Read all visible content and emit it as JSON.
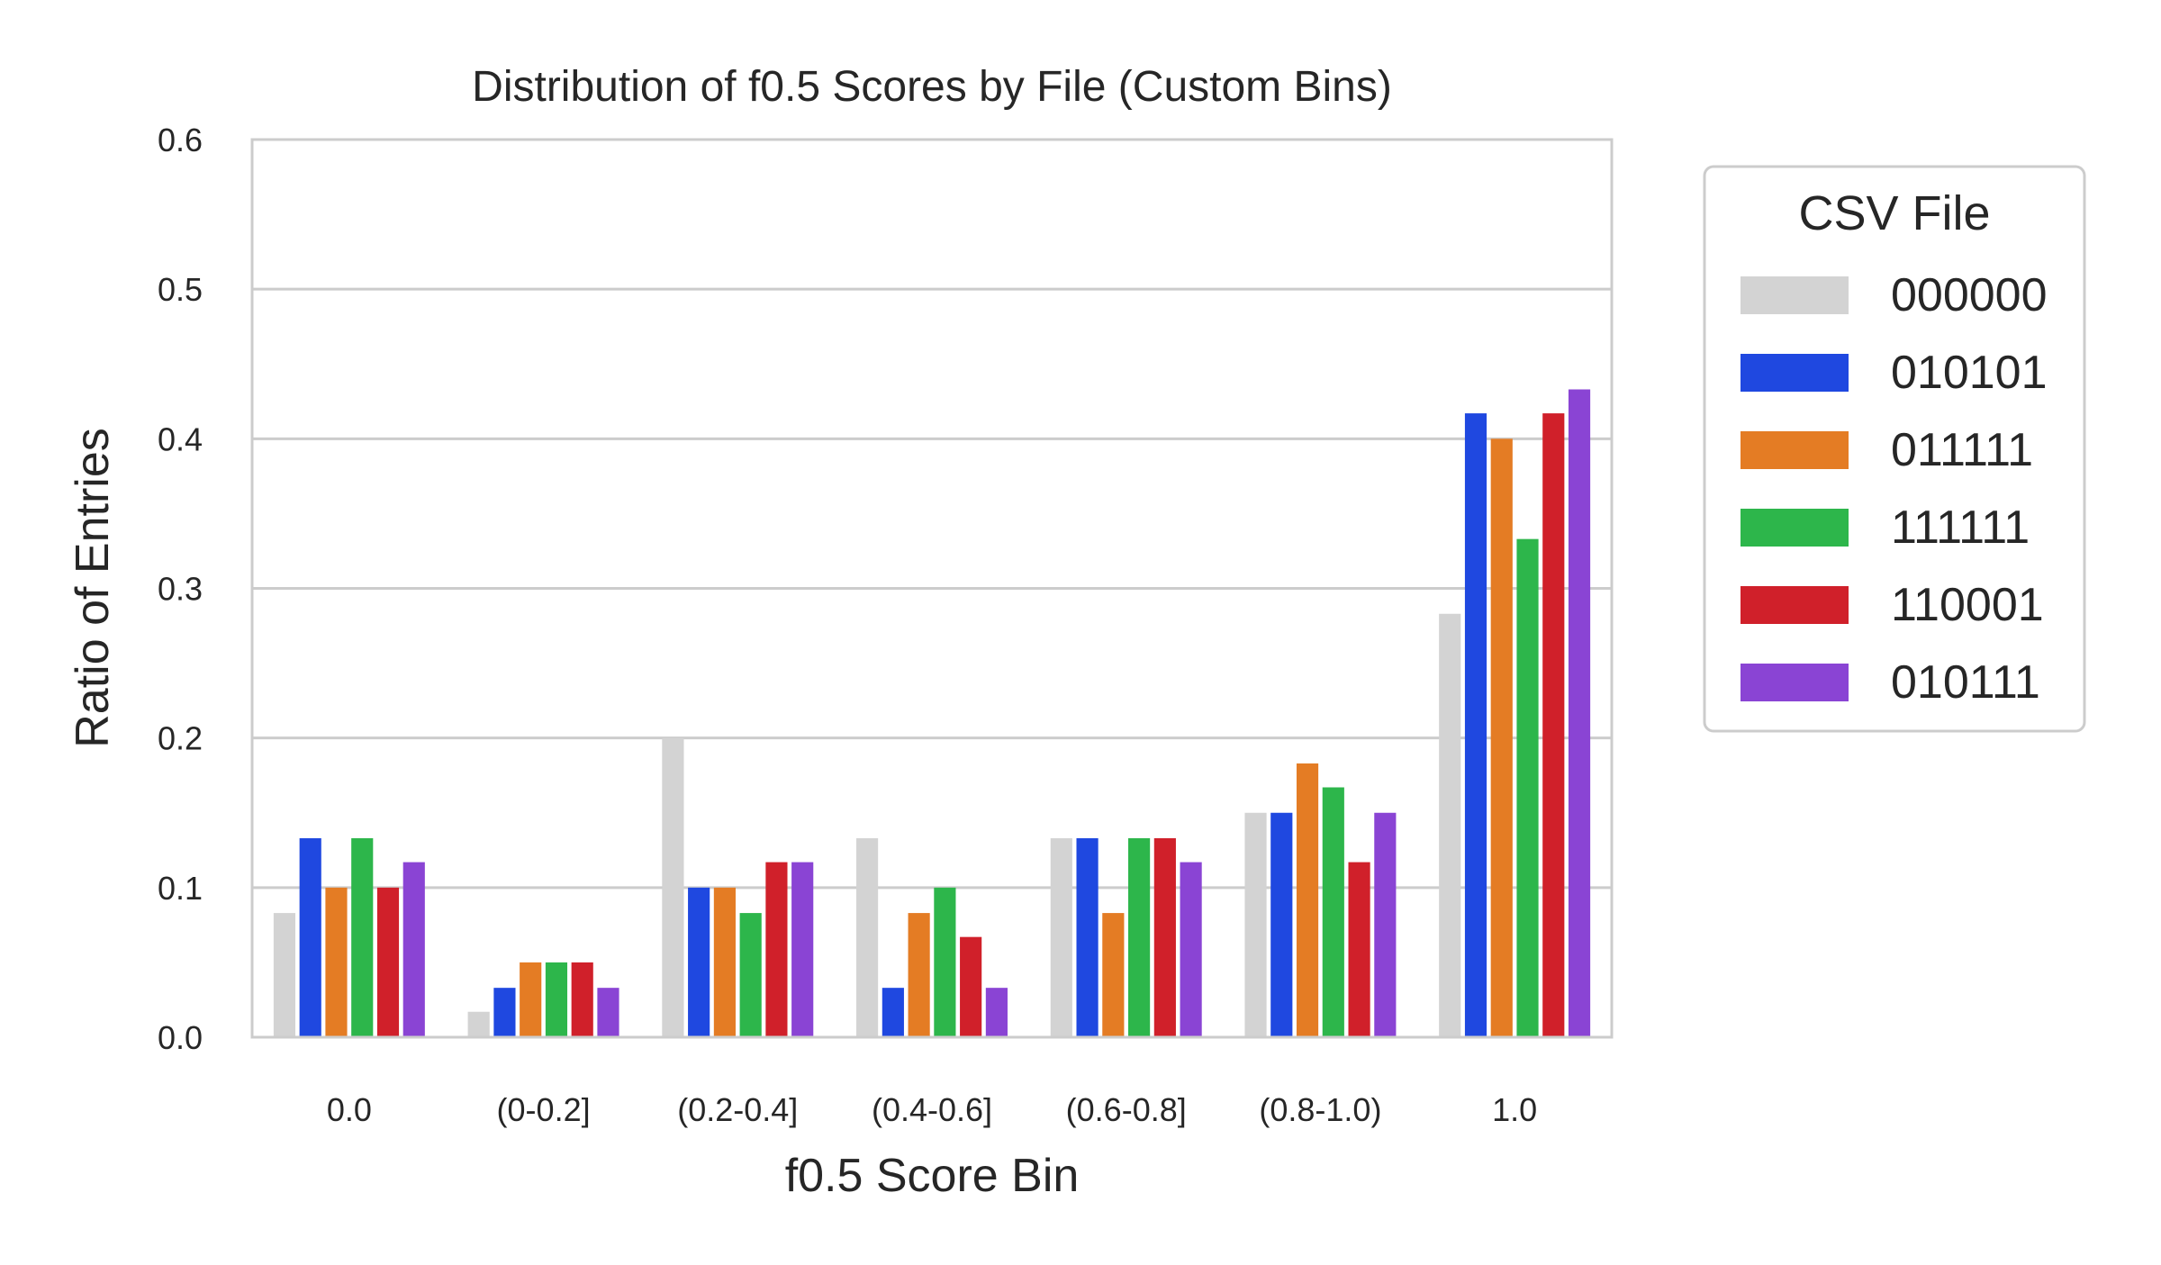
{
  "chart_data": {
    "type": "bar",
    "title": "Distribution of f0.5 Scores by File (Custom Bins)",
    "xlabel": "f0.5 Score Bin",
    "ylabel": "Ratio of Entries",
    "ylim": [
      0,
      0.6
    ],
    "yticks": [
      "0.0",
      "0.1",
      "0.2",
      "0.3",
      "0.4",
      "0.5",
      "0.6"
    ],
    "grid": true,
    "legend_title": "CSV File",
    "legend_position": "outside-right",
    "categories": [
      "0.0",
      "(0-0.2]",
      "(0.2-0.4]",
      "(0.4-0.6]",
      "(0.6-0.8]",
      "(0.8-1.0)",
      "1.0"
    ],
    "series": [
      {
        "name": "000000",
        "color": "#d3d3d3",
        "values": [
          0.083,
          0.017,
          0.2,
          0.133,
          0.133,
          0.15,
          0.283
        ]
      },
      {
        "name": "010101",
        "color": "#1f48e0",
        "values": [
          0.133,
          0.033,
          0.1,
          0.033,
          0.133,
          0.15,
          0.417
        ]
      },
      {
        "name": "011111",
        "color": "#e47c24",
        "values": [
          0.1,
          0.05,
          0.1,
          0.083,
          0.083,
          0.183,
          0.4
        ]
      },
      {
        "name": "111111",
        "color": "#2db64b",
        "values": [
          0.133,
          0.05,
          0.083,
          0.1,
          0.133,
          0.167,
          0.333
        ]
      },
      {
        "name": "110001",
        "color": "#d0202a",
        "values": [
          0.1,
          0.05,
          0.117,
          0.067,
          0.133,
          0.117,
          0.417
        ]
      },
      {
        "name": "010111",
        "color": "#8a44d4",
        "values": [
          0.117,
          0.033,
          0.117,
          0.033,
          0.117,
          0.15,
          0.433
        ]
      }
    ]
  }
}
